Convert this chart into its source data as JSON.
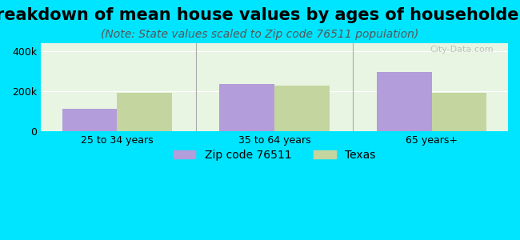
{
  "title": "Breakdown of mean house values by ages of householders",
  "subtitle": "(Note: State values scaled to Zip code 76511 population)",
  "categories": [
    "25 to 34 years",
    "35 to 64 years",
    "65 years+"
  ],
  "zip_values": [
    110000,
    237000,
    295000
  ],
  "texas_values": [
    192000,
    227000,
    192000
  ],
  "zip_color": "#b39ddb",
  "texas_color": "#c5d5a0",
  "background_outer": "#00e5ff",
  "background_inner": "#e8f5e3",
  "ylim": [
    0,
    440000
  ],
  "yticks": [
    0,
    200000,
    400000
  ],
  "bar_width": 0.35,
  "legend_zip_label": "Zip code 76511",
  "legend_texas_label": "Texas",
  "title_fontsize": 15,
  "subtitle_fontsize": 10,
  "tick_fontsize": 9,
  "legend_fontsize": 10
}
